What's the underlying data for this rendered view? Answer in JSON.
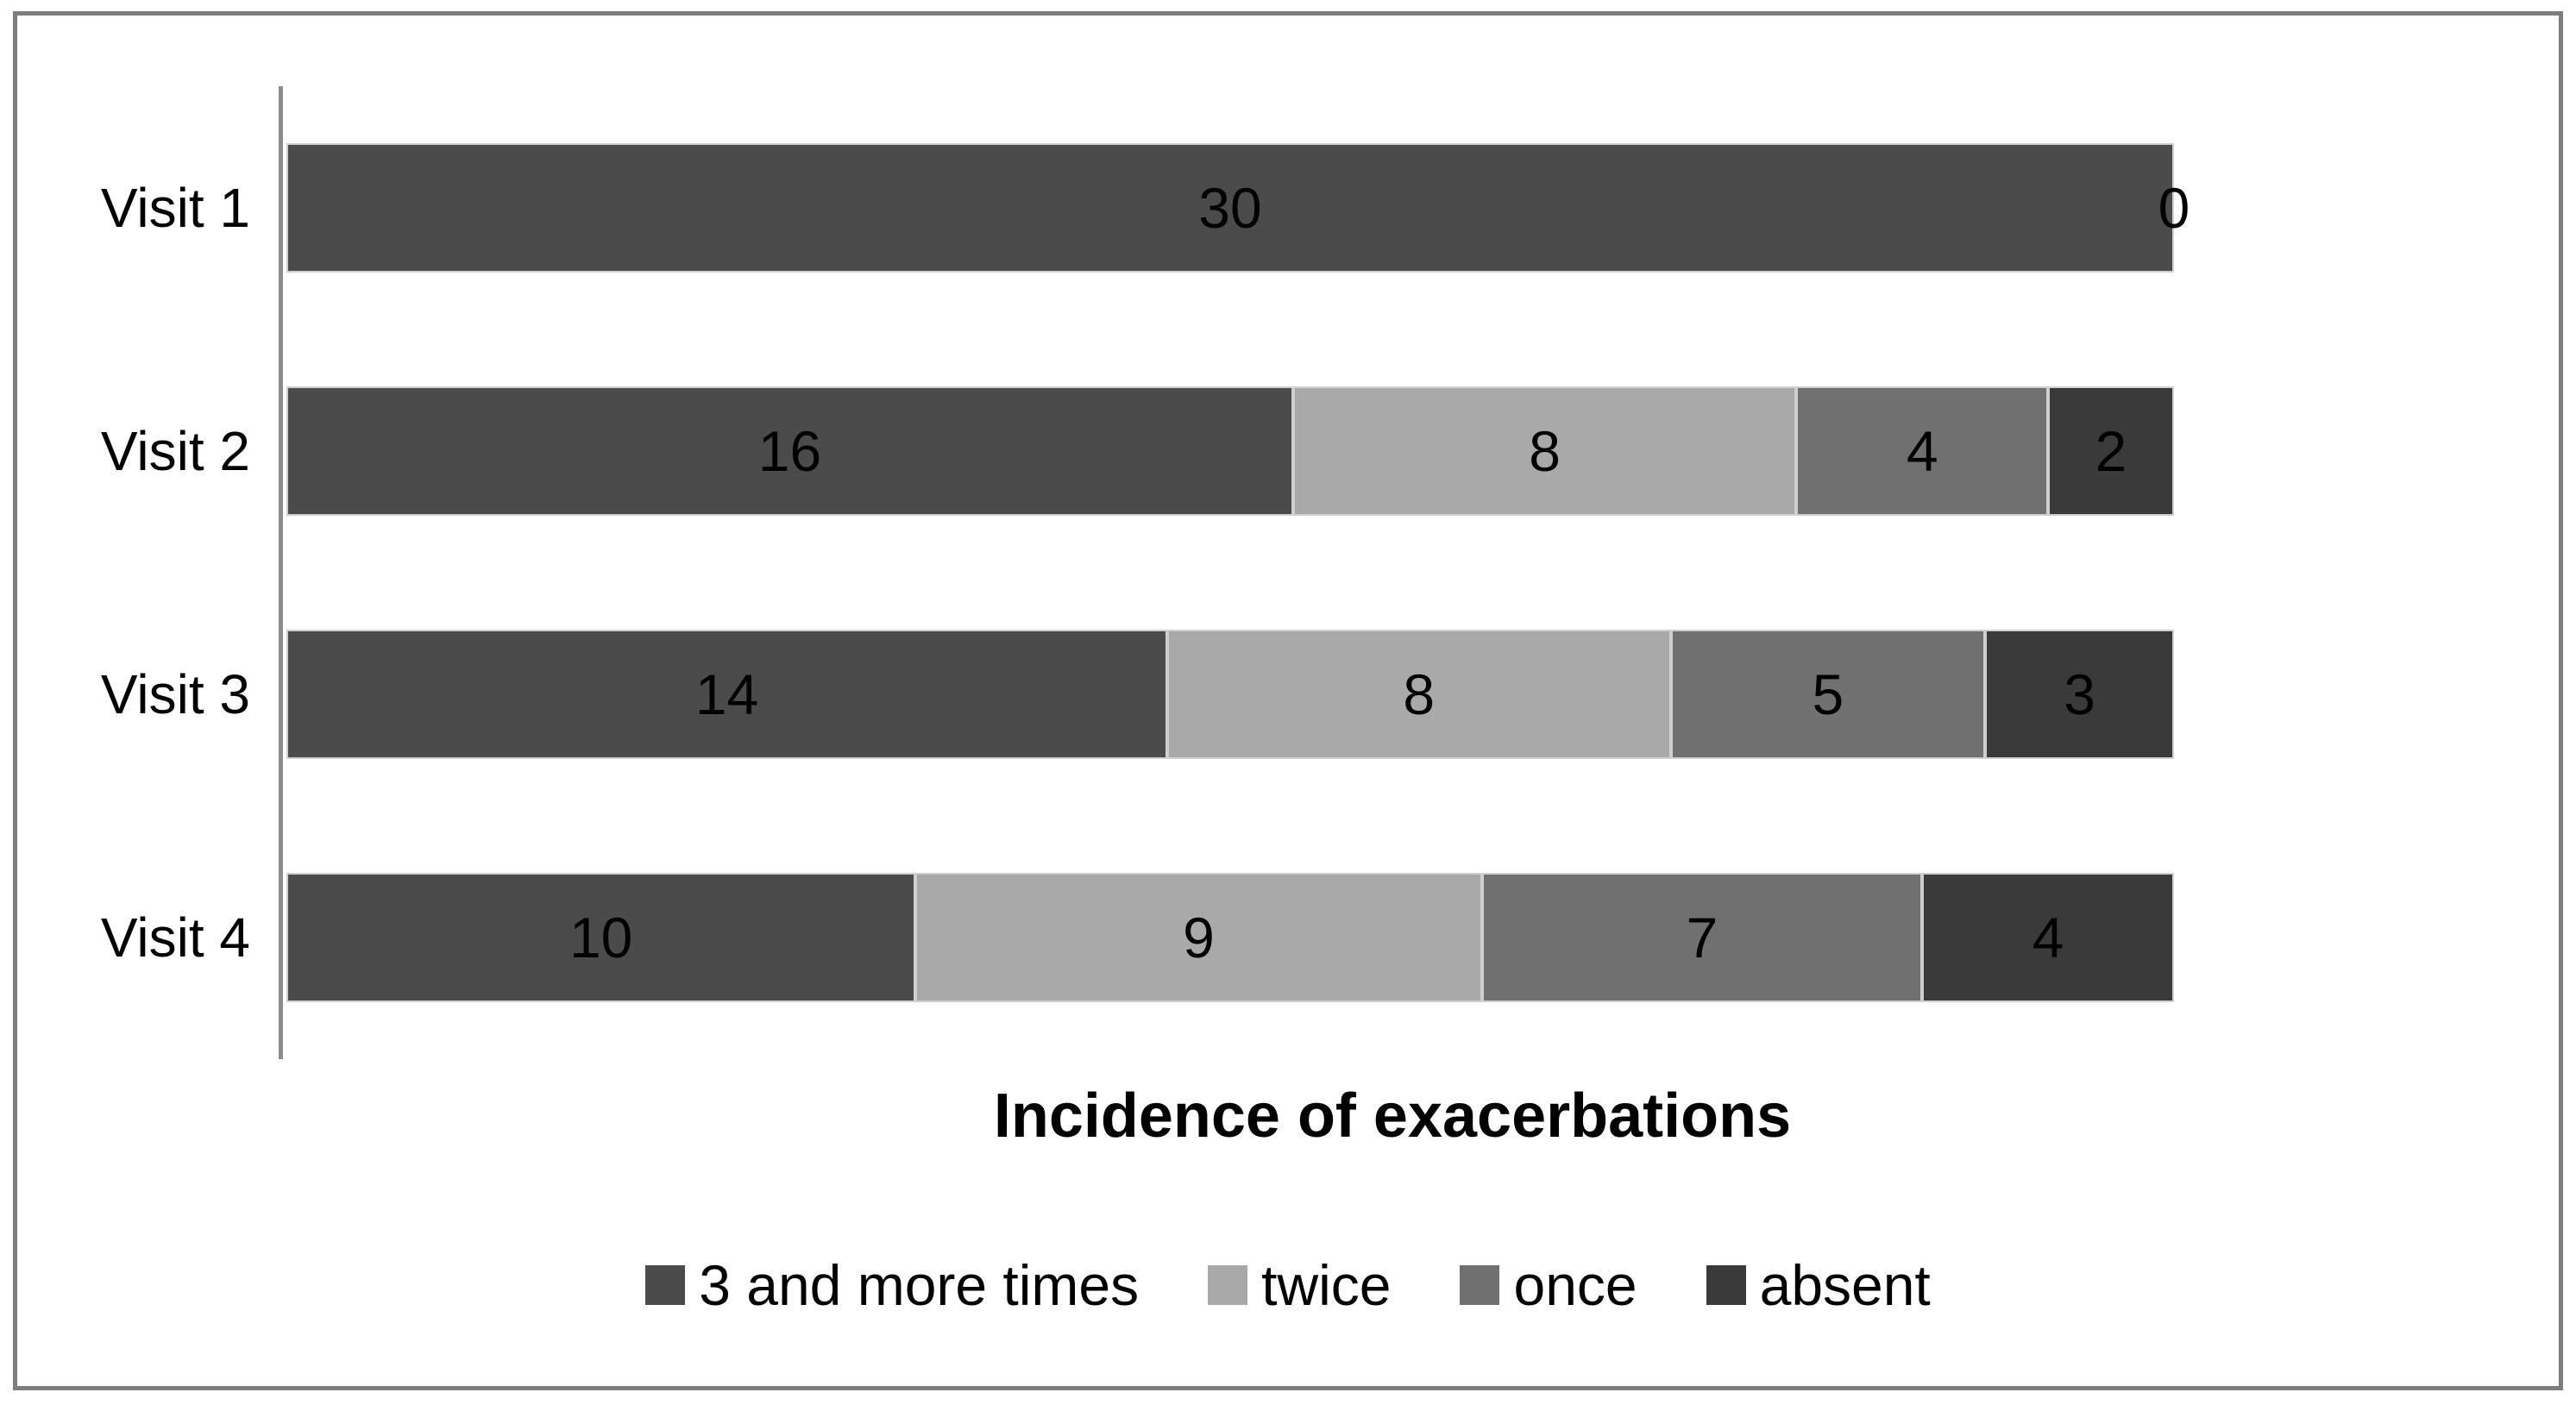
{
  "figure": {
    "background_color": "#ffffff",
    "border_color": "#7d7d7d",
    "axis_color": "#8c8c8c",
    "segment_outline_color": "#cfcfcf",
    "data_label_color": "#000000"
  },
  "chart_data": {
    "type": "bar",
    "orientation": "horizontal",
    "stacked": true,
    "title": "Incidence of exacerbations",
    "categories": [
      "Visit 1",
      "Visit 2",
      "Visit 3",
      "Visit 4"
    ],
    "series": [
      {
        "name": "3 and more times",
        "color": "#4b4b4b",
        "values": [
          30,
          16,
          14,
          10
        ]
      },
      {
        "name": "twice",
        "color": "#a9a9a9",
        "values": [
          0,
          8,
          8,
          9
        ]
      },
      {
        "name": "once",
        "color": "#707070",
        "values": [
          0,
          4,
          5,
          7
        ]
      },
      {
        "name": "absent",
        "color": "#3a3a3a",
        "values": [
          0,
          2,
          3,
          4
        ]
      }
    ],
    "end_labels": [
      "0",
      null,
      null,
      null
    ],
    "xlim": [
      0,
      30
    ],
    "data_labels": true,
    "gridlines": false,
    "legend_position": "bottom"
  }
}
